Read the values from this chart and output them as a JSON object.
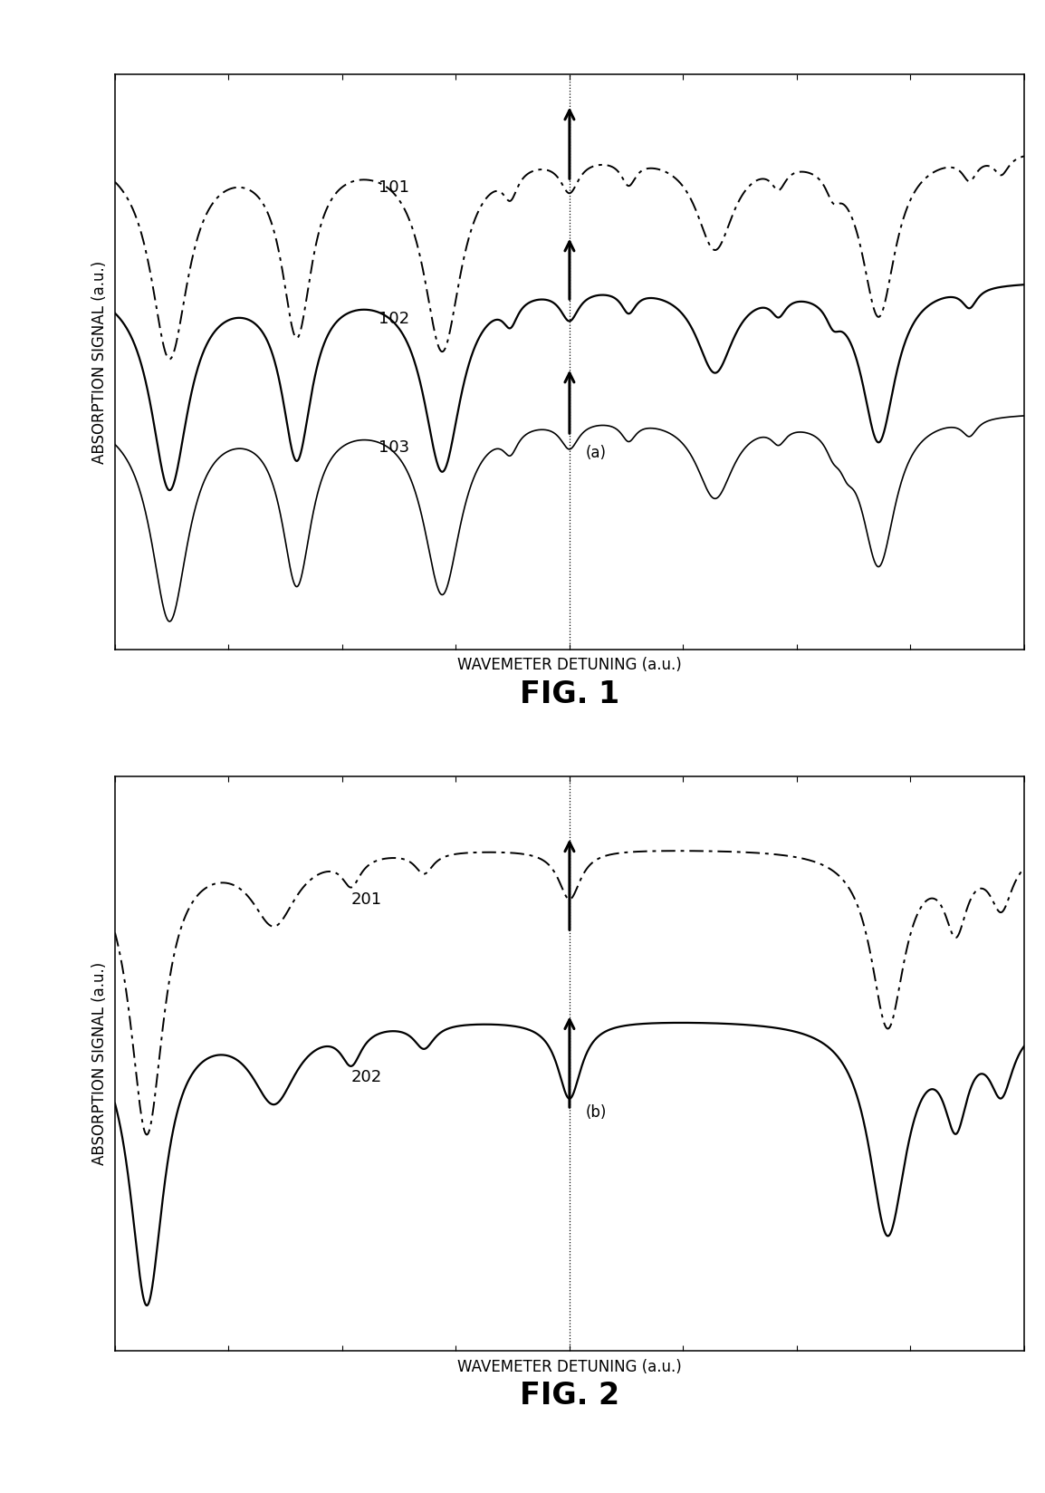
{
  "fig1_title": "FIG. 1",
  "fig2_title": "FIG. 2",
  "xlabel": "WAVEMETER DETUNING (a.u.)",
  "ylabel": "ABSORPTION SIGNAL (a.u.)",
  "vline_pos": 0.0,
  "fig1_labels": [
    "101",
    "102",
    "103"
  ],
  "fig2_labels": [
    "201",
    "202"
  ],
  "fig1_annotation": "(a)",
  "fig2_annotation": "(b)",
  "background_color": "#ffffff"
}
